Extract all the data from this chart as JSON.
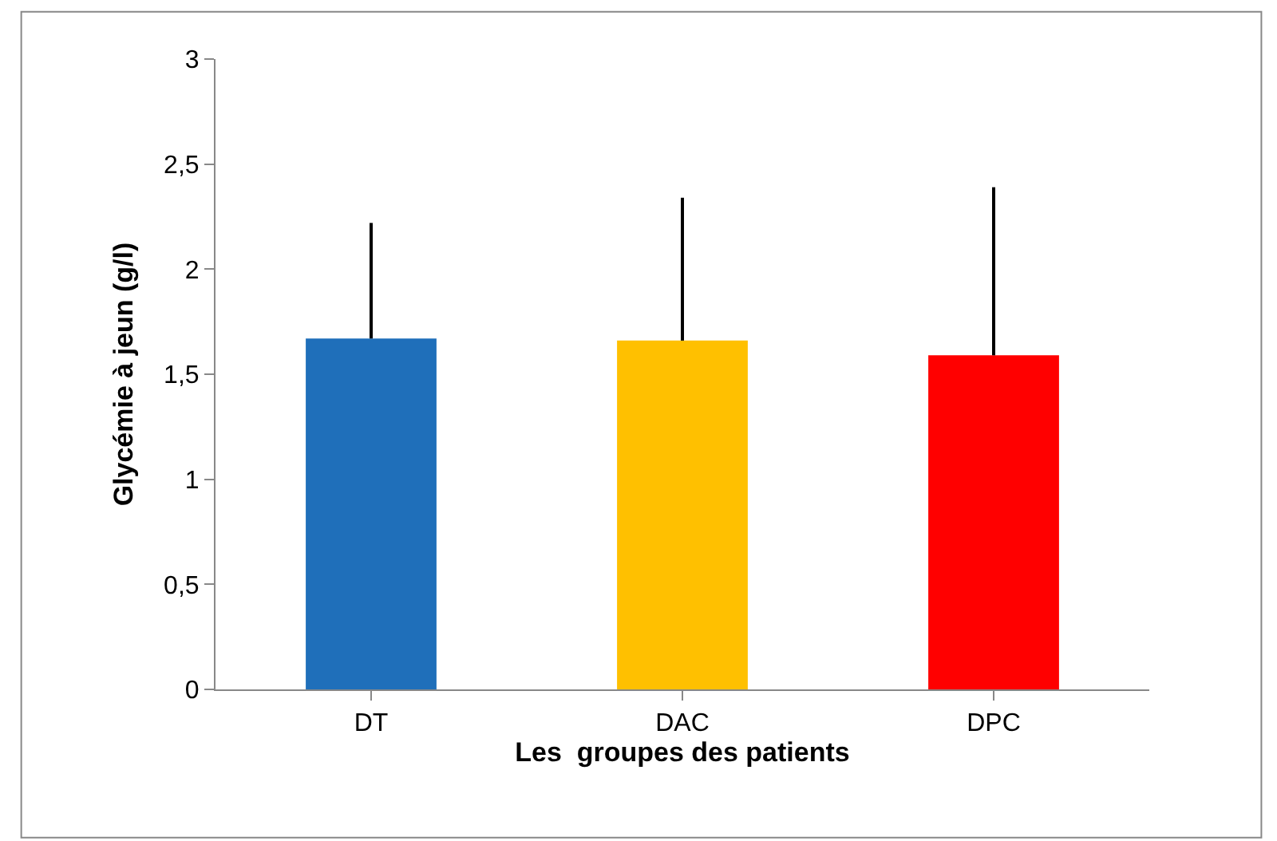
{
  "chart_data": {
    "type": "bar",
    "xlabel": "Les  groupes des patients",
    "ylabel": "Glycémie à jeun (g/l)",
    "categories": [
      "DT",
      "DAC",
      "DPC"
    ],
    "values": [
      1.67,
      1.66,
      1.59
    ],
    "colors": [
      "#1f6fba",
      "#ffc000",
      "#ff0000"
    ],
    "errors": [
      [
        1.67,
        2.22
      ],
      [
        1.66,
        2.34
      ],
      [
        1.59,
        2.39
      ]
    ],
    "ylim": [
      0,
      3
    ],
    "yticks": [
      0,
      {
        "value": 0.5,
        "label": "0,5"
      },
      1,
      {
        "value": 1.5,
        "label": "1,5"
      },
      2,
      {
        "value": 2.5,
        "label": "2,5"
      },
      3
    ],
    "grid": false,
    "legend": false
  }
}
